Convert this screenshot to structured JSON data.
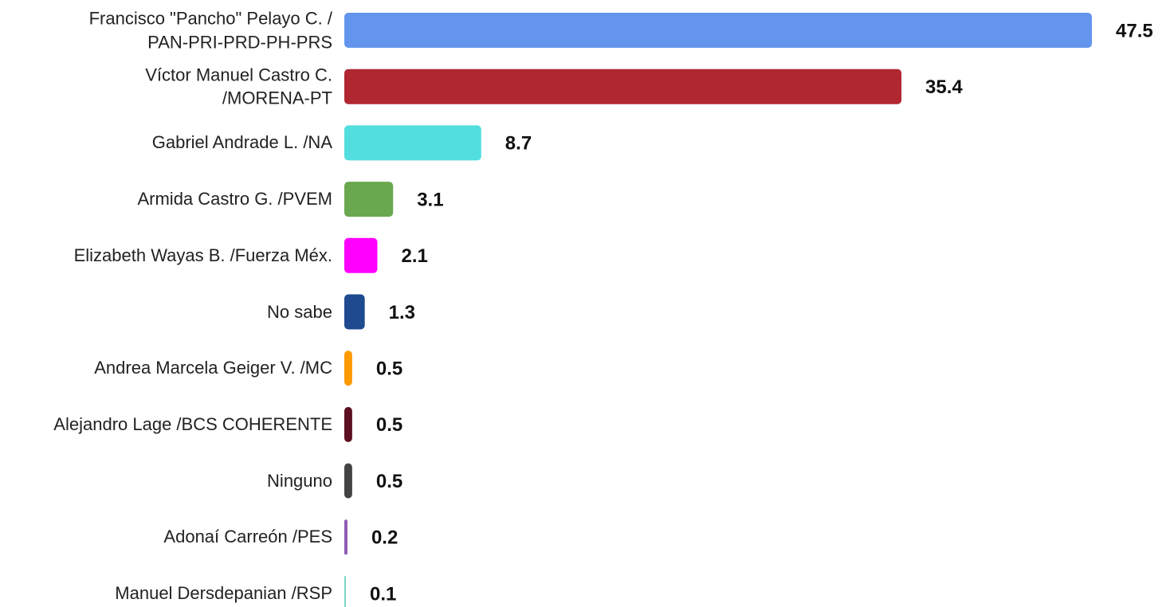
{
  "chart_data": {
    "type": "bar",
    "orientation": "horizontal",
    "categories": [
      "Francisco \"Pancho\"  Pelayo C. /\nPAN-PRI-PRD-PH-PRS",
      "Víctor Manuel Castro C.\n/MORENA-PT",
      "Gabriel Andrade L. /NA",
      "Armida Castro G. /PVEM",
      "Elizabeth Wayas B. /Fuerza Méx.",
      "No sabe",
      "Andrea Marcela Geiger V. /MC",
      "Alejandro Lage /BCS COHERENTE",
      "Ninguno",
      "Adonaí Carreón /PES",
      "Manuel Dersdepanian /RSP"
    ],
    "values": [
      47.5,
      35.4,
      8.7,
      3.1,
      2.1,
      1.3,
      0.5,
      0.5,
      0.5,
      0.2,
      0.1
    ],
    "colors": [
      "#6495ED",
      "#B02732",
      "#52DEDE",
      "#6AA84F",
      "#FF00FF",
      "#1F4A8F",
      "#FF9900",
      "#5B0F1F",
      "#434343",
      "#8E5CB5",
      "#76D7C4"
    ]
  }
}
